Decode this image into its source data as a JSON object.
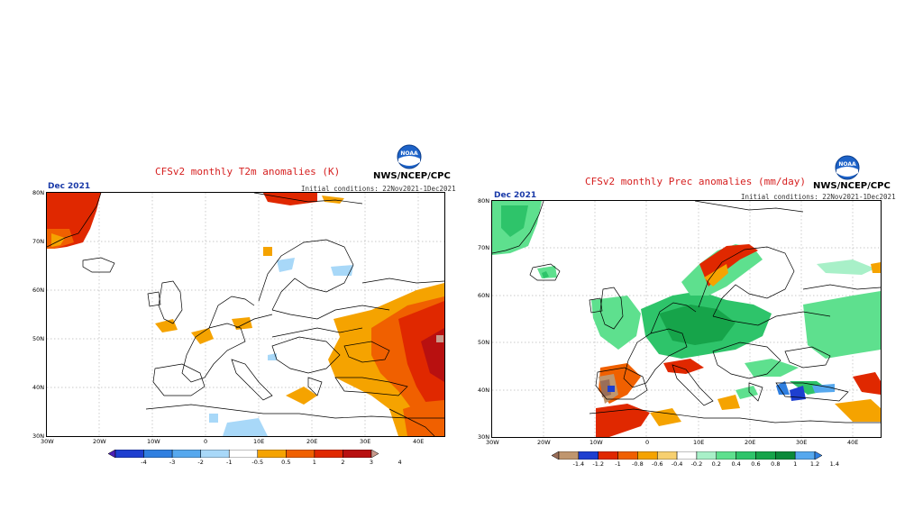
{
  "panels": [
    {
      "id": "t2m",
      "title": "CFSv2 monthly T2m anomalies (K)",
      "agency": "NWS/NCEP/CPC",
      "logo_text": "NOAA",
      "month": "Dec 2021",
      "initial_conditions": "Initial conditions: 22Nov2021-1Dec2021",
      "lat_labels": [
        "80N",
        "70N",
        "60N",
        "50N",
        "40N",
        "30N"
      ],
      "lon_labels": [
        "30W",
        "20W",
        "10W",
        "0",
        "10E",
        "20E",
        "30E",
        "40E"
      ],
      "colorbar": {
        "labels": [
          "-4",
          "-3",
          "-2",
          "-1",
          "-0.5",
          "0.5",
          "1",
          "2",
          "3",
          "4"
        ],
        "colors": [
          "#4b1fb5",
          "#1e3fd0",
          "#2f7fe0",
          "#56a8ee",
          "#a8d8f8",
          "#ffffff",
          "#f5a300",
          "#f06000",
          "#e02800",
          "#b81010",
          "#c89a8c"
        ]
      }
    },
    {
      "id": "prec",
      "title": "CFSv2 monthly Prec anomalies (mm/day)",
      "agency": "NWS/NCEP/CPC",
      "logo_text": "NOAA",
      "month": "Dec 2021",
      "initial_conditions": "Initial conditions: 22Nov2021-1Dec2021",
      "lat_labels": [
        "80N",
        "70N",
        "60N",
        "50N",
        "40N",
        "30N"
      ],
      "lon_labels": [
        "30W",
        "20W",
        "10W",
        "0",
        "10E",
        "20E",
        "30E",
        "40E"
      ],
      "colorbar": {
        "labels": [
          "-1.4",
          "-1.2",
          "-1",
          "-0.8",
          "-0.6",
          "-0.4",
          "-0.2",
          "0.2",
          "0.4",
          "0.6",
          "0.8",
          "1",
          "1.2",
          "1.4"
        ],
        "colors": [
          "#9a6e58",
          "#c0966e",
          "#1e3fd0",
          "#e02800",
          "#f06000",
          "#f5a300",
          "#f7d070",
          "#ffffff",
          "#a8f0c8",
          "#5ee08e",
          "#2ec46a",
          "#16a44a",
          "#0a8a3a",
          "#56a8ee",
          "#2f7fe0"
        ]
      }
    }
  ]
}
